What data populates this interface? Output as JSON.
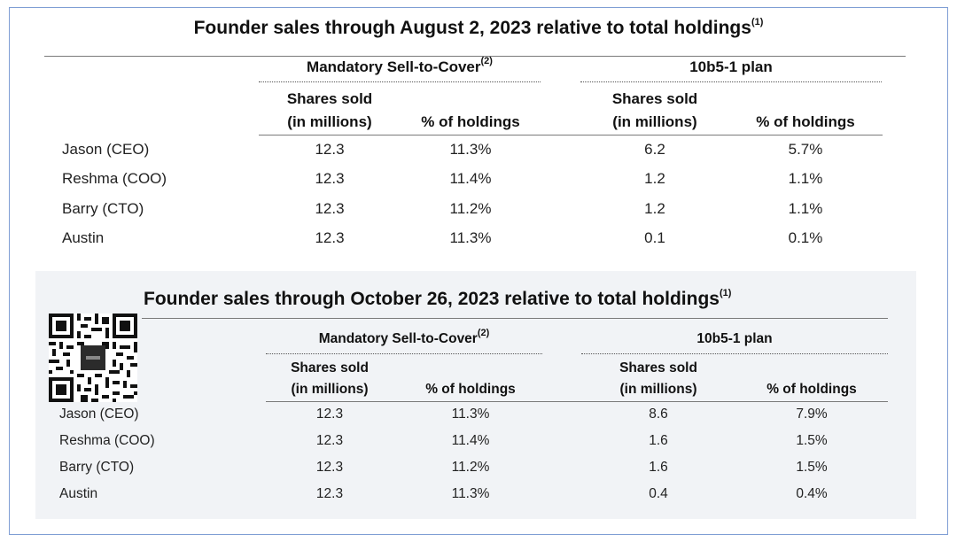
{
  "tables": [
    {
      "title": "Founder sales through August 2, 2023 relative to total holdings",
      "title_footnote": "(1)",
      "groups": [
        {
          "label": "Mandatory Sell-to-Cover",
          "footnote": "(2)"
        },
        {
          "label": "10b5-1 plan",
          "footnote": ""
        }
      ],
      "column_headers": [
        {
          "line1": "Shares sold",
          "line2": "(in millions)"
        },
        {
          "line1": "% of holdings",
          "line2": ""
        },
        {
          "line1": "Shares sold",
          "line2": "(in millions)"
        },
        {
          "line1": "% of holdings",
          "line2": ""
        }
      ],
      "rows": [
        {
          "name": "Jason (CEO)",
          "values": [
            "12.3",
            "11.3%",
            "6.2",
            "5.7%"
          ]
        },
        {
          "name": "Reshma (COO)",
          "values": [
            "12.3",
            "11.4%",
            "1.2",
            "1.1%"
          ]
        },
        {
          "name": "Barry (CTO)",
          "values": [
            "12.3",
            "11.2%",
            "1.2",
            "1.1%"
          ]
        },
        {
          "name": "Austin",
          "values": [
            "12.3",
            "11.3%",
            "0.1",
            "0.1%"
          ]
        }
      ]
    },
    {
      "title": "Founder sales through October 26, 2023 relative to total holdings",
      "title_footnote": "(1)",
      "groups": [
        {
          "label": "Mandatory Sell-to-Cover",
          "footnote": "(2)"
        },
        {
          "label": "10b5-1 plan",
          "footnote": ""
        }
      ],
      "column_headers": [
        {
          "line1": "Shares sold",
          "line2": "(in millions)"
        },
        {
          "line1": "% of holdings",
          "line2": ""
        },
        {
          "line1": "Shares sold",
          "line2": "(in millions)"
        },
        {
          "line1": "% of holdings",
          "line2": ""
        }
      ],
      "rows": [
        {
          "name": "Jason (CEO)",
          "values": [
            "12.3",
            "11.3%",
            "8.6",
            "7.9%"
          ]
        },
        {
          "name": "Reshma (COO)",
          "values": [
            "12.3",
            "11.4%",
            "1.6",
            "1.5%"
          ]
        },
        {
          "name": "Barry (CTO)",
          "values": [
            "12.3",
            "11.2%",
            "1.6",
            "1.5%"
          ]
        },
        {
          "name": "Austin",
          "values": [
            "12.3",
            "11.3%",
            "0.4",
            "0.4%"
          ]
        }
      ]
    }
  ],
  "colors": {
    "border": "#7f9ed4",
    "panel": "#f1f3f6",
    "rule": "#7a7a7a"
  },
  "icons": {
    "qr": "qr-code-icon"
  }
}
